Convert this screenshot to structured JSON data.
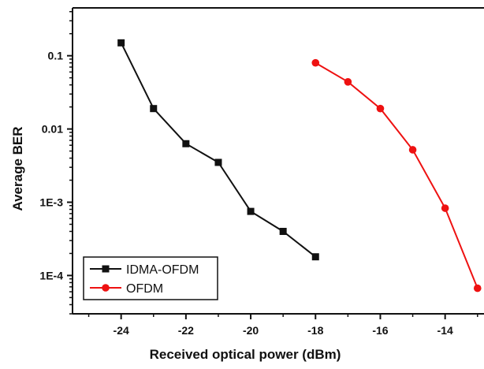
{
  "chart_data": {
    "type": "line",
    "title": "",
    "xlabel": "Received optical power (dBm)",
    "ylabel": "Average BER",
    "xlim": [
      -25.5,
      -12.8
    ],
    "ylim": [
      3e-05,
      0.45
    ],
    "yscale": "log",
    "xticks": [
      -24,
      -22,
      -20,
      -18,
      -16,
      -14
    ],
    "xtick_labels": [
      "-24",
      "-22",
      "-20",
      "-18",
      "-16",
      "-14"
    ],
    "yticks": [
      0.1,
      0.01,
      0.001,
      0.0001
    ],
    "ytick_labels": [
      "0.1",
      "0.01",
      "1E-3",
      "1E-4"
    ],
    "grid": false,
    "legend_position": "bottom-left",
    "series": [
      {
        "name": "IDMA-OFDM",
        "color": "#111111",
        "marker": "square",
        "x": [
          -24,
          -23,
          -22,
          -21,
          -20,
          -19,
          -18
        ],
        "y": [
          0.15,
          0.019,
          0.0063,
          0.0035,
          0.00075,
          0.0004,
          0.00018
        ]
      },
      {
        "name": "OFDM",
        "color": "#ee1111",
        "marker": "circle",
        "x": [
          -18,
          -17,
          -16,
          -15,
          -14,
          -13
        ],
        "y": [
          0.08,
          0.044,
          0.019,
          0.0052,
          0.00083,
          6.7e-05
        ]
      }
    ]
  }
}
